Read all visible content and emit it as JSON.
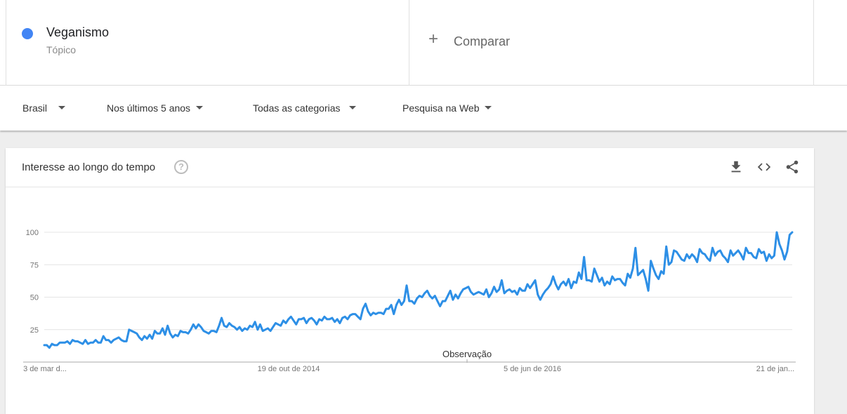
{
  "term": {
    "name": "Veganismo",
    "type": "Tópico",
    "color": "#4285f4"
  },
  "compare": {
    "label": "Comparar"
  },
  "filters": {
    "region": "Brasil",
    "period": "Nos últimos 5 anos",
    "category": "Todas as categorias",
    "search_type": "Pesquisa na Web"
  },
  "chart_card": {
    "title": "Interesse ao longo do tempo",
    "help_glyph": "?",
    "icons": [
      "download-icon",
      "embed-icon",
      "share-icon"
    ]
  },
  "chart_data": {
    "type": "line",
    "title": "Interesse ao longo do tempo",
    "ylim": [
      0,
      100
    ],
    "yticks": [
      25,
      50,
      75,
      100
    ],
    "xtick_labels": [
      "3 de mar d...",
      "19 de out de 2014",
      "5 de jun de 2016",
      "21 de jan..."
    ],
    "annotation": "Observação",
    "grid": true,
    "series": [
      {
        "color": "#2d8fe6",
        "values": [
          13,
          13,
          11,
          14,
          13,
          13,
          15,
          15,
          15,
          16,
          14,
          17,
          16,
          16,
          15,
          14,
          17,
          14,
          15,
          15,
          17,
          15,
          15,
          20,
          17,
          17,
          15,
          17,
          18,
          19,
          17,
          16,
          16,
          25,
          24,
          23,
          22,
          19,
          17,
          20,
          18,
          21,
          18,
          24,
          22,
          22,
          26,
          21,
          28,
          22,
          19,
          21,
          20,
          24,
          23,
          23,
          22,
          25,
          29,
          26,
          29,
          27,
          24,
          23,
          22,
          24,
          24,
          23,
          28,
          34,
          28,
          27,
          30,
          28,
          27,
          25,
          27,
          24,
          26,
          25,
          28,
          27,
          31,
          25,
          29,
          24,
          25,
          26,
          24,
          27,
          30,
          29,
          28,
          32,
          30,
          33,
          35,
          32,
          29,
          33,
          33,
          34,
          30,
          33,
          34,
          32,
          29,
          33,
          32,
          35,
          33,
          33,
          34,
          31,
          33,
          30,
          34,
          35,
          33,
          36,
          37,
          37,
          35,
          33,
          41,
          45,
          39,
          36,
          38,
          37,
          38,
          38,
          37,
          41,
          41,
          44,
          37,
          44,
          48,
          44,
          47,
          59,
          47,
          47,
          45,
          49,
          51,
          50,
          53,
          55,
          51,
          49,
          51,
          47,
          43,
          47,
          47,
          51,
          55,
          48,
          52,
          49,
          53,
          56,
          57,
          58,
          54,
          52,
          53,
          54,
          53,
          52,
          56,
          50,
          53,
          58,
          54,
          56,
          63,
          53,
          55,
          56,
          54,
          55,
          52,
          57,
          55,
          55,
          60,
          57,
          60,
          63,
          52,
          48,
          52,
          55,
          57,
          60,
          66,
          60,
          56,
          60,
          62,
          59,
          64,
          57,
          62,
          61,
          69,
          64,
          81,
          63,
          63,
          62,
          72,
          67,
          62,
          65,
          59,
          62,
          60,
          66,
          63,
          64,
          64,
          61,
          59,
          68,
          65,
          72,
          88,
          67,
          69,
          71,
          64,
          55,
          78,
          72,
          67,
          64,
          70,
          68,
          89,
          75,
          77,
          86,
          85,
          82,
          79,
          78,
          83,
          80,
          83,
          81,
          77,
          87,
          84,
          83,
          80,
          78,
          88,
          82,
          85,
          86,
          82,
          80,
          77,
          86,
          82,
          84,
          86,
          83,
          79,
          88,
          84,
          84,
          81,
          80,
          87,
          84,
          85,
          78,
          83,
          80,
          82,
          100,
          91,
          86,
          79,
          85,
          98,
          100
        ]
      }
    ]
  }
}
